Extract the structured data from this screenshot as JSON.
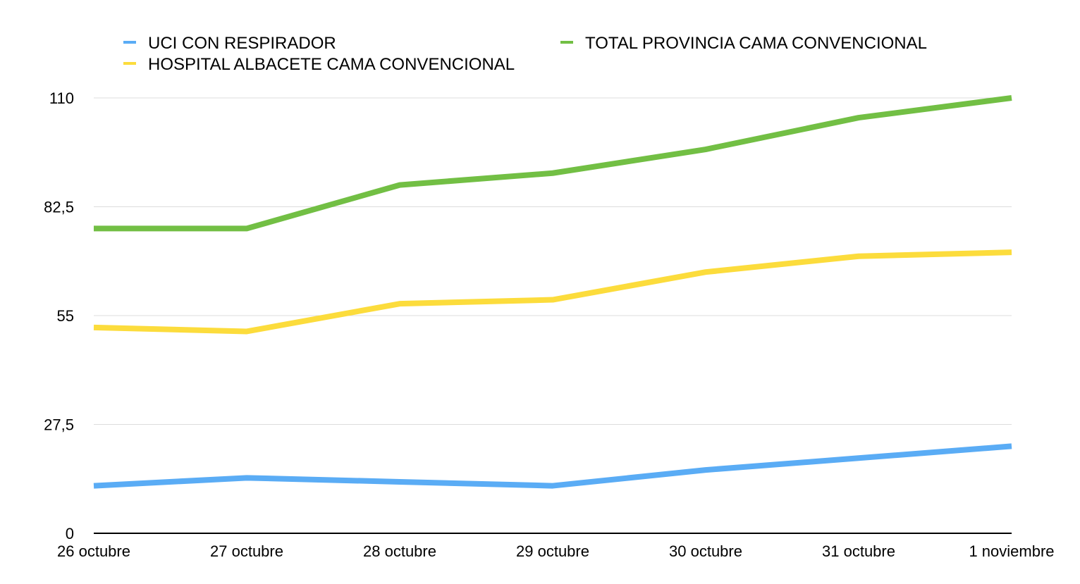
{
  "chart_data": {
    "type": "line",
    "title": "",
    "xlabel": "",
    "ylabel": "",
    "categories": [
      "26 octubre",
      "27 octubre",
      "28 octubre",
      "29 octubre",
      "30 octubre",
      "31 octubre",
      "1 noviembre"
    ],
    "ylim": [
      0,
      110
    ],
    "yticks": [
      0,
      27.5,
      55,
      82.5,
      110
    ],
    "ytick_labels": [
      "0",
      "27,5",
      "55",
      "82,5",
      "110"
    ],
    "grid": true,
    "legend_position": "top",
    "series": [
      {
        "name": "UCI CON RESPIRADOR",
        "color": "#5aacf5",
        "values": [
          12,
          14,
          13,
          12,
          16,
          19,
          22
        ]
      },
      {
        "name": "TOTAL PROVINCIA CAMA CONVENCIONAL",
        "color": "#72bf44",
        "values": [
          77,
          77,
          88,
          91,
          97,
          105,
          110
        ]
      },
      {
        "name": "HOSPITAL ALBACETE CAMA CONVENCIONAL",
        "color": "#fcdc3c",
        "values": [
          52,
          51,
          58,
          59,
          66,
          70,
          71
        ]
      }
    ]
  }
}
